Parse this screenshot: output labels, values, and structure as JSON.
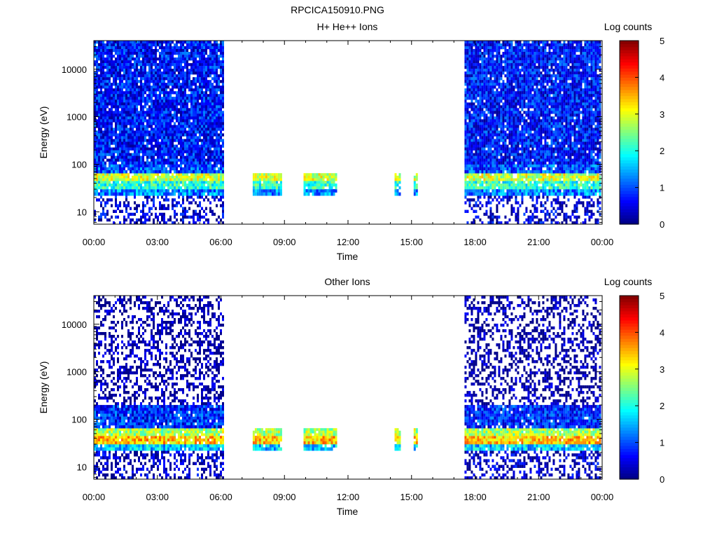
{
  "figure_title": "RPCICA150910.PNG",
  "colorbar": {
    "label": "Log counts",
    "min": 0,
    "max": 5,
    "ticks": [
      "0",
      "1",
      "2",
      "3",
      "4",
      "5"
    ]
  },
  "chart_data": [
    {
      "type": "heatmap",
      "title": "H+ He++ Ions",
      "xlabel": "Time",
      "ylabel": "Energy (eV)",
      "xticks": [
        "00:00",
        "03:00",
        "06:00",
        "09:00",
        "12:00",
        "15:00",
        "18:00",
        "21:00",
        "00:00"
      ],
      "xlim_hours": [
        0,
        24
      ],
      "yscale": "log",
      "ylim": [
        5.5,
        40000
      ],
      "yticks": [
        {
          "value": 10,
          "label": "10"
        },
        {
          "value": 100,
          "label": "100"
        },
        {
          "value": 1000,
          "label": "1000"
        },
        {
          "value": 10000,
          "label": "10000"
        }
      ],
      "data_intervals_hours": [
        {
          "start": 0.0,
          "end": 6.1,
          "kind": "full"
        },
        {
          "start": 7.5,
          "end": 8.9,
          "kind": "partial"
        },
        {
          "start": 9.9,
          "end": 11.5,
          "kind": "partial"
        },
        {
          "start": 14.2,
          "end": 14.5,
          "kind": "partial"
        },
        {
          "start": 15.1,
          "end": 15.25,
          "kind": "partial"
        },
        {
          "start": 17.5,
          "end": 23.9,
          "kind": "full"
        }
      ],
      "energy_profile": [
        {
          "e_low": 5.5,
          "e_high": 22,
          "log_counts": 0.4
        },
        {
          "e_low": 22,
          "e_high": 30,
          "log_counts": 1.3
        },
        {
          "e_low": 30,
          "e_high": 45,
          "log_counts": 2.1
        },
        {
          "e_low": 45,
          "e_high": 65,
          "log_counts": 2.9
        },
        {
          "e_low": 65,
          "e_high": 100,
          "log_counts": 1.0
        },
        {
          "e_low": 100,
          "e_high": 40000,
          "log_counts": 0.7
        }
      ]
    },
    {
      "type": "heatmap",
      "title": "Other Ions",
      "xlabel": "Time",
      "ylabel": "Energy (eV)",
      "xticks": [
        "00:00",
        "03:00",
        "06:00",
        "09:00",
        "12:00",
        "15:00",
        "18:00",
        "21:00",
        "00:00"
      ],
      "xlim_hours": [
        0,
        24
      ],
      "yscale": "log",
      "ylim": [
        5.5,
        40000
      ],
      "yticks": [
        {
          "value": 10,
          "label": "10"
        },
        {
          "value": 100,
          "label": "100"
        },
        {
          "value": 1000,
          "label": "1000"
        },
        {
          "value": 10000,
          "label": "10000"
        }
      ],
      "data_intervals_hours": [
        {
          "start": 0.0,
          "end": 6.1,
          "kind": "full"
        },
        {
          "start": 7.5,
          "end": 8.9,
          "kind": "partial"
        },
        {
          "start": 9.9,
          "end": 11.5,
          "kind": "partial"
        },
        {
          "start": 14.2,
          "end": 14.5,
          "kind": "partial"
        },
        {
          "start": 15.1,
          "end": 15.25,
          "kind": "partial"
        },
        {
          "start": 17.5,
          "end": 23.9,
          "kind": "full"
        }
      ],
      "energy_profile": [
        {
          "e_low": 5.5,
          "e_high": 22,
          "log_counts": 0.3
        },
        {
          "e_low": 22,
          "e_high": 30,
          "log_counts": 1.6
        },
        {
          "e_low": 30,
          "e_high": 45,
          "log_counts": 3.4
        },
        {
          "e_low": 45,
          "e_high": 65,
          "log_counts": 2.7
        },
        {
          "e_low": 65,
          "e_high": 200,
          "log_counts": 0.8
        },
        {
          "e_low": 200,
          "e_high": 40000,
          "log_counts": 0.1
        }
      ]
    }
  ]
}
